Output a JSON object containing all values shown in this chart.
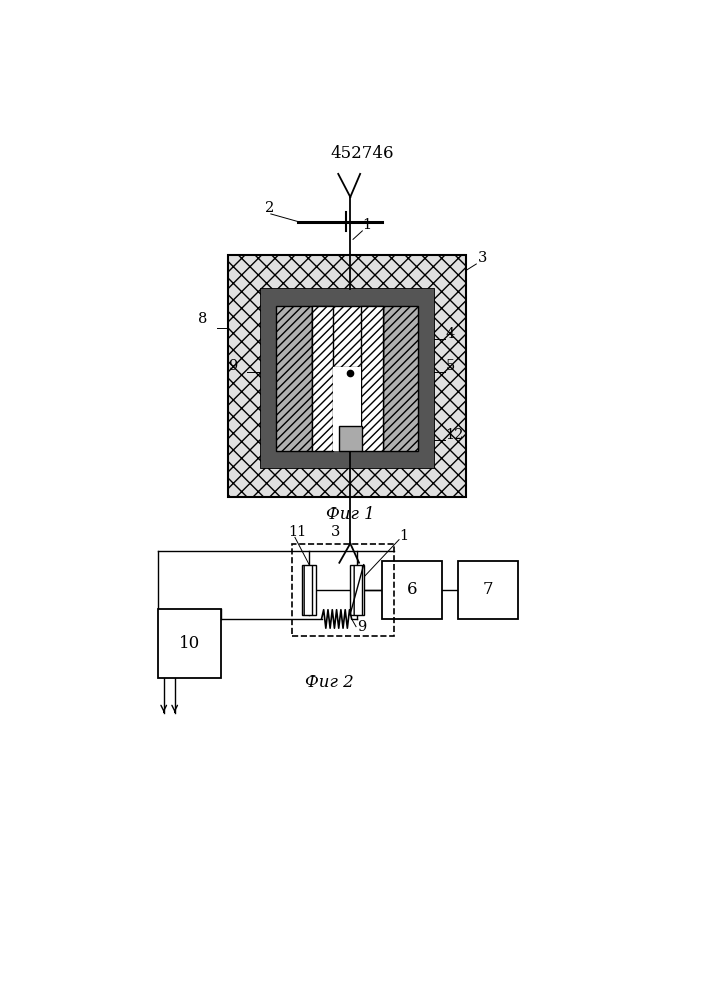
{
  "title": "452746",
  "fig1_label": "Фиг 1",
  "fig2_label": "Фиг 2",
  "bg_color": "#ffffff",
  "lc": "#000000",
  "fig1": {
    "ob": [
      0.28,
      0.535,
      0.4,
      0.295
    ],
    "ic": [
      0.335,
      0.565,
      0.29,
      0.225
    ]
  }
}
